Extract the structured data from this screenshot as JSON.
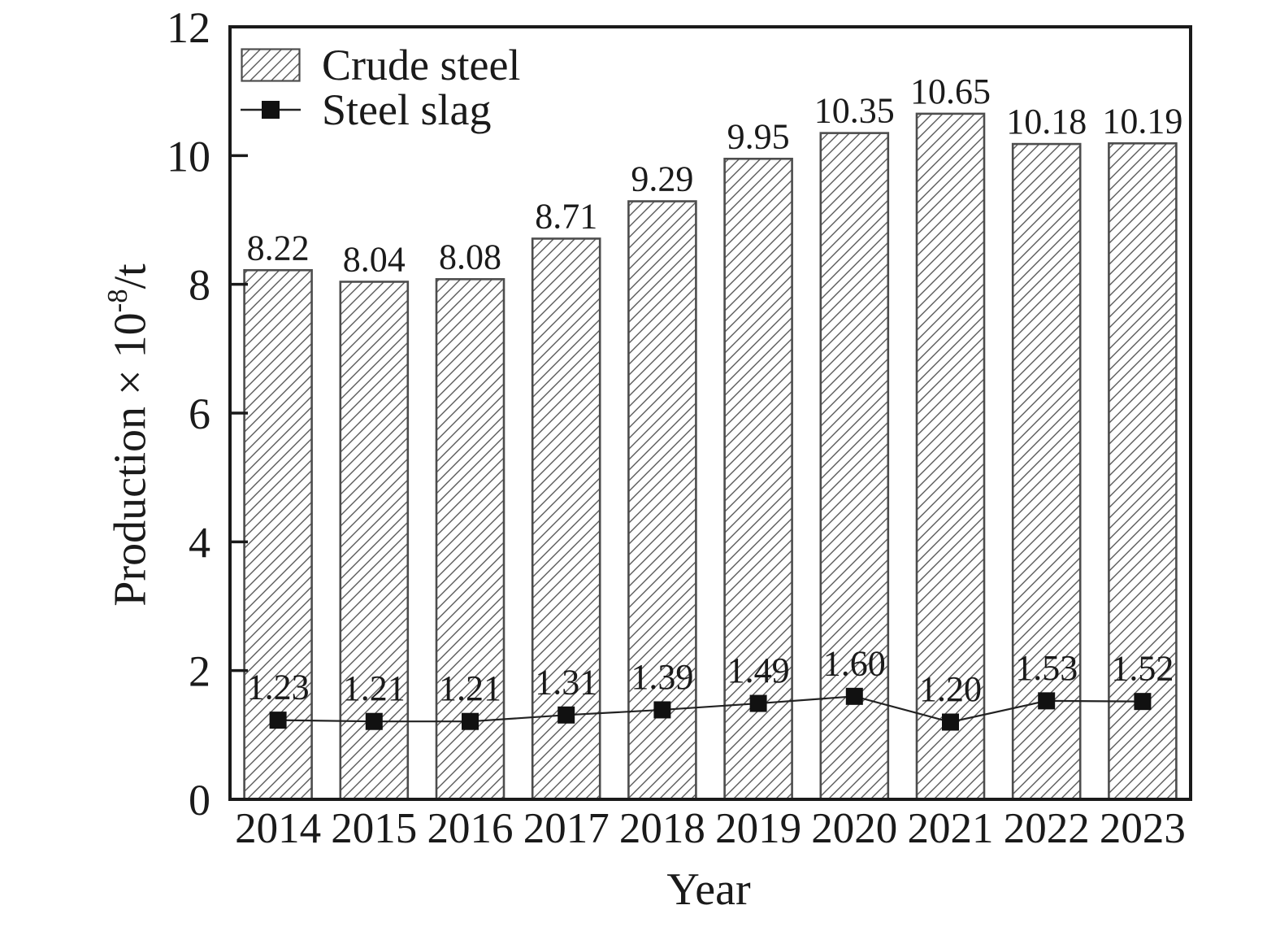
{
  "chart_data": {
    "type": "bar+line",
    "title": "",
    "categories": [
      "2014",
      "2015",
      "2016",
      "2017",
      "2018",
      "2019",
      "2020",
      "2021",
      "2022",
      "2023"
    ],
    "series": [
      {
        "name": "Crude steel",
        "type": "bar",
        "marker": "hatched-bar-swatch",
        "values": [
          8.22,
          8.04,
          8.08,
          8.71,
          9.29,
          9.95,
          10.35,
          10.65,
          10.18,
          10.19
        ]
      },
      {
        "name": "Steel slag",
        "type": "line",
        "marker": "line-with-square-marker",
        "values": [
          1.23,
          1.21,
          1.21,
          1.31,
          1.39,
          1.49,
          1.6,
          1.2,
          1.53,
          1.52
        ]
      }
    ],
    "xlabel": "Year",
    "ylabel": "Production × 10⁻⁸/t",
    "ylabel_parts": {
      "base": "Production × 10",
      "exponent": "-8",
      "unit": "/t"
    },
    "ylim": [
      0,
      12
    ],
    "yticks": [
      0,
      2,
      4,
      6,
      8,
      10,
      12
    ],
    "data_labels": true,
    "grid": false,
    "legend_position": "top-left-inside",
    "colors": {
      "text": "#1a1a1a",
      "axis": "#1a1a1a",
      "bar_fill": "#ffffff",
      "bar_hatch": "#5a5a5a",
      "bar_border": "#4d4d4d",
      "line": "#222222",
      "marker": "#111111"
    }
  }
}
